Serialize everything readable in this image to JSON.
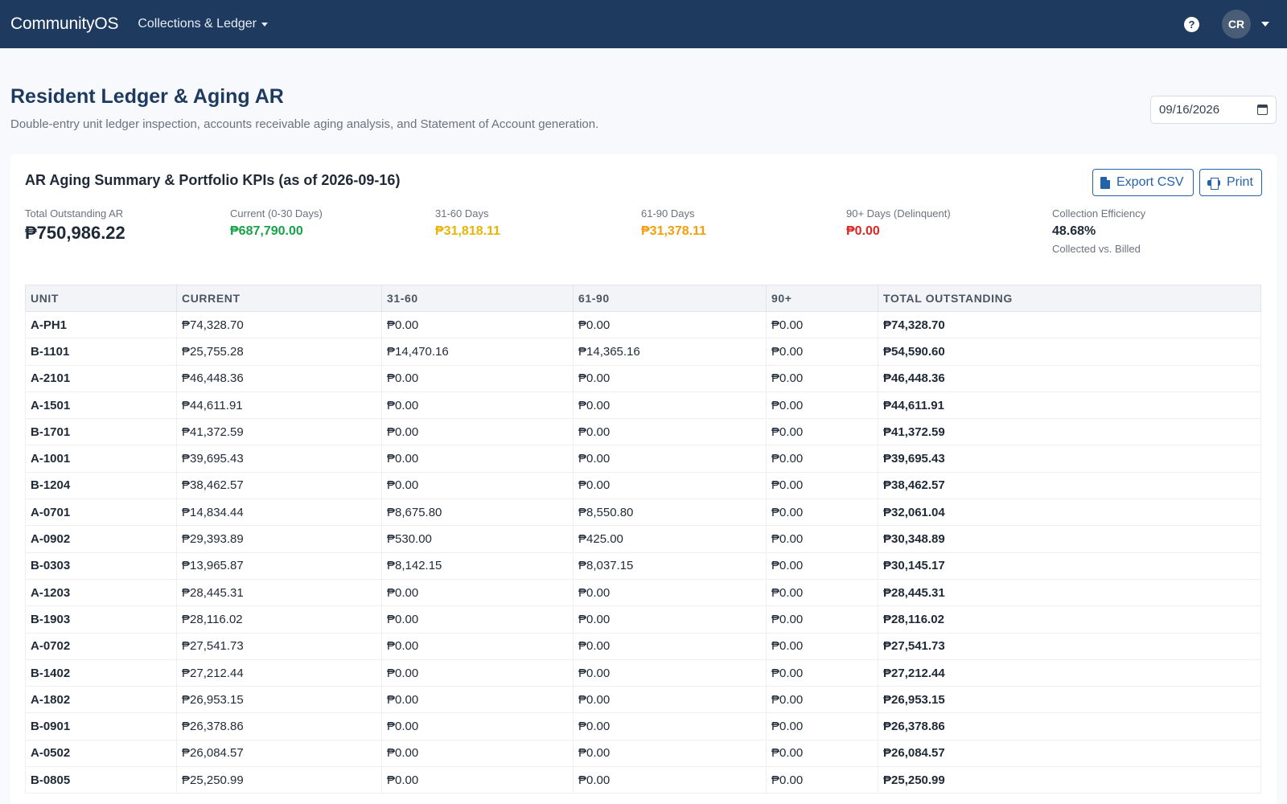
{
  "navbar": {
    "brand": "CommunityOS",
    "menu_label": "Collections & Ledger",
    "help_icon": "question-circle-icon",
    "avatar_initials": "CR"
  },
  "header": {
    "title": "Resident Ledger & Aging AR",
    "subtitle": "Double-entry unit ledger inspection, accounts receivable aging analysis, and Statement of Account generation.",
    "date_value": "09/16/2026"
  },
  "summary": {
    "title": "AR Aging Summary & Portfolio KPIs (as of 2026-09-16)",
    "export_label": "Export CSV",
    "print_label": "Print",
    "kpis": [
      {
        "label": "Total Outstanding AR",
        "value": "₱750,986.22",
        "color": "#1f2937"
      },
      {
        "label": "Current (0-30 Days)",
        "value": "₱687,790.00",
        "color": "#16a34a"
      },
      {
        "label": "31-60 Days",
        "value": "₱31,818.11",
        "color": "#eab308"
      },
      {
        "label": "61-90 Days",
        "value": "₱31,378.11",
        "color": "#f59e0b"
      },
      {
        "label": "90+ Days (Delinquent)",
        "value": "₱0.00",
        "color": "#dc2626"
      },
      {
        "label": "Collection Efficiency",
        "value": "48.68%",
        "sub": "Collected vs. Billed",
        "color": "#1f2937"
      }
    ]
  },
  "table": {
    "columns": [
      "UNIT",
      "CURRENT",
      "31-60",
      "61-90",
      "90+",
      "TOTAL OUTSTANDING"
    ],
    "rows": [
      [
        "A-PH1",
        "₱74,328.70",
        "₱0.00",
        "₱0.00",
        "₱0.00",
        "₱74,328.70"
      ],
      [
        "B-1101",
        "₱25,755.28",
        "₱14,470.16",
        "₱14,365.16",
        "₱0.00",
        "₱54,590.60"
      ],
      [
        "A-2101",
        "₱46,448.36",
        "₱0.00",
        "₱0.00",
        "₱0.00",
        "₱46,448.36"
      ],
      [
        "A-1501",
        "₱44,611.91",
        "₱0.00",
        "₱0.00",
        "₱0.00",
        "₱44,611.91"
      ],
      [
        "B-1701",
        "₱41,372.59",
        "₱0.00",
        "₱0.00",
        "₱0.00",
        "₱41,372.59"
      ],
      [
        "A-1001",
        "₱39,695.43",
        "₱0.00",
        "₱0.00",
        "₱0.00",
        "₱39,695.43"
      ],
      [
        "B-1204",
        "₱38,462.57",
        "₱0.00",
        "₱0.00",
        "₱0.00",
        "₱38,462.57"
      ],
      [
        "A-0701",
        "₱14,834.44",
        "₱8,675.80",
        "₱8,550.80",
        "₱0.00",
        "₱32,061.04"
      ],
      [
        "A-0902",
        "₱29,393.89",
        "₱530.00",
        "₱425.00",
        "₱0.00",
        "₱30,348.89"
      ],
      [
        "B-0303",
        "₱13,965.87",
        "₱8,142.15",
        "₱8,037.15",
        "₱0.00",
        "₱30,145.17"
      ],
      [
        "A-1203",
        "₱28,445.31",
        "₱0.00",
        "₱0.00",
        "₱0.00",
        "₱28,445.31"
      ],
      [
        "B-1903",
        "₱28,116.02",
        "₱0.00",
        "₱0.00",
        "₱0.00",
        "₱28,116.02"
      ],
      [
        "A-0702",
        "₱27,541.73",
        "₱0.00",
        "₱0.00",
        "₱0.00",
        "₱27,541.73"
      ],
      [
        "B-1402",
        "₱27,212.44",
        "₱0.00",
        "₱0.00",
        "₱0.00",
        "₱27,212.44"
      ],
      [
        "A-1802",
        "₱26,953.15",
        "₱0.00",
        "₱0.00",
        "₱0.00",
        "₱26,953.15"
      ],
      [
        "B-0901",
        "₱26,378.86",
        "₱0.00",
        "₱0.00",
        "₱0.00",
        "₱26,378.86"
      ],
      [
        "A-0502",
        "₱26,084.57",
        "₱0.00",
        "₱0.00",
        "₱0.00",
        "₱26,084.57"
      ],
      [
        "B-0805",
        "₱25,250.99",
        "₱0.00",
        "₱0.00",
        "₱0.00",
        "₱25,250.99"
      ]
    ]
  }
}
